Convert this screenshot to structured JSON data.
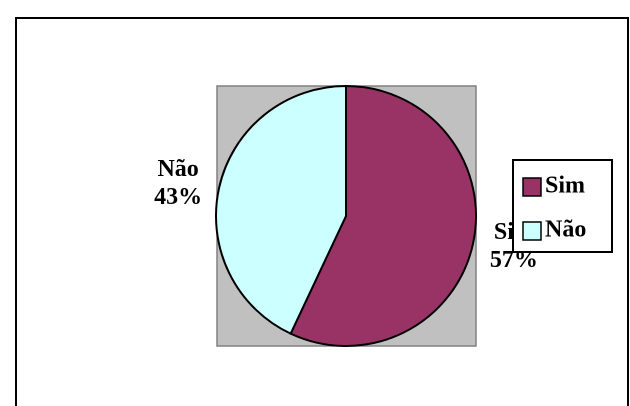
{
  "chart_data": {
    "type": "pie",
    "categories": [
      "Sim",
      "Não"
    ],
    "values": [
      57,
      43
    ],
    "value_labels": [
      "57%",
      "43%"
    ],
    "colors": [
      "#993366",
      "#ccffff"
    ],
    "legend": "right"
  }
}
